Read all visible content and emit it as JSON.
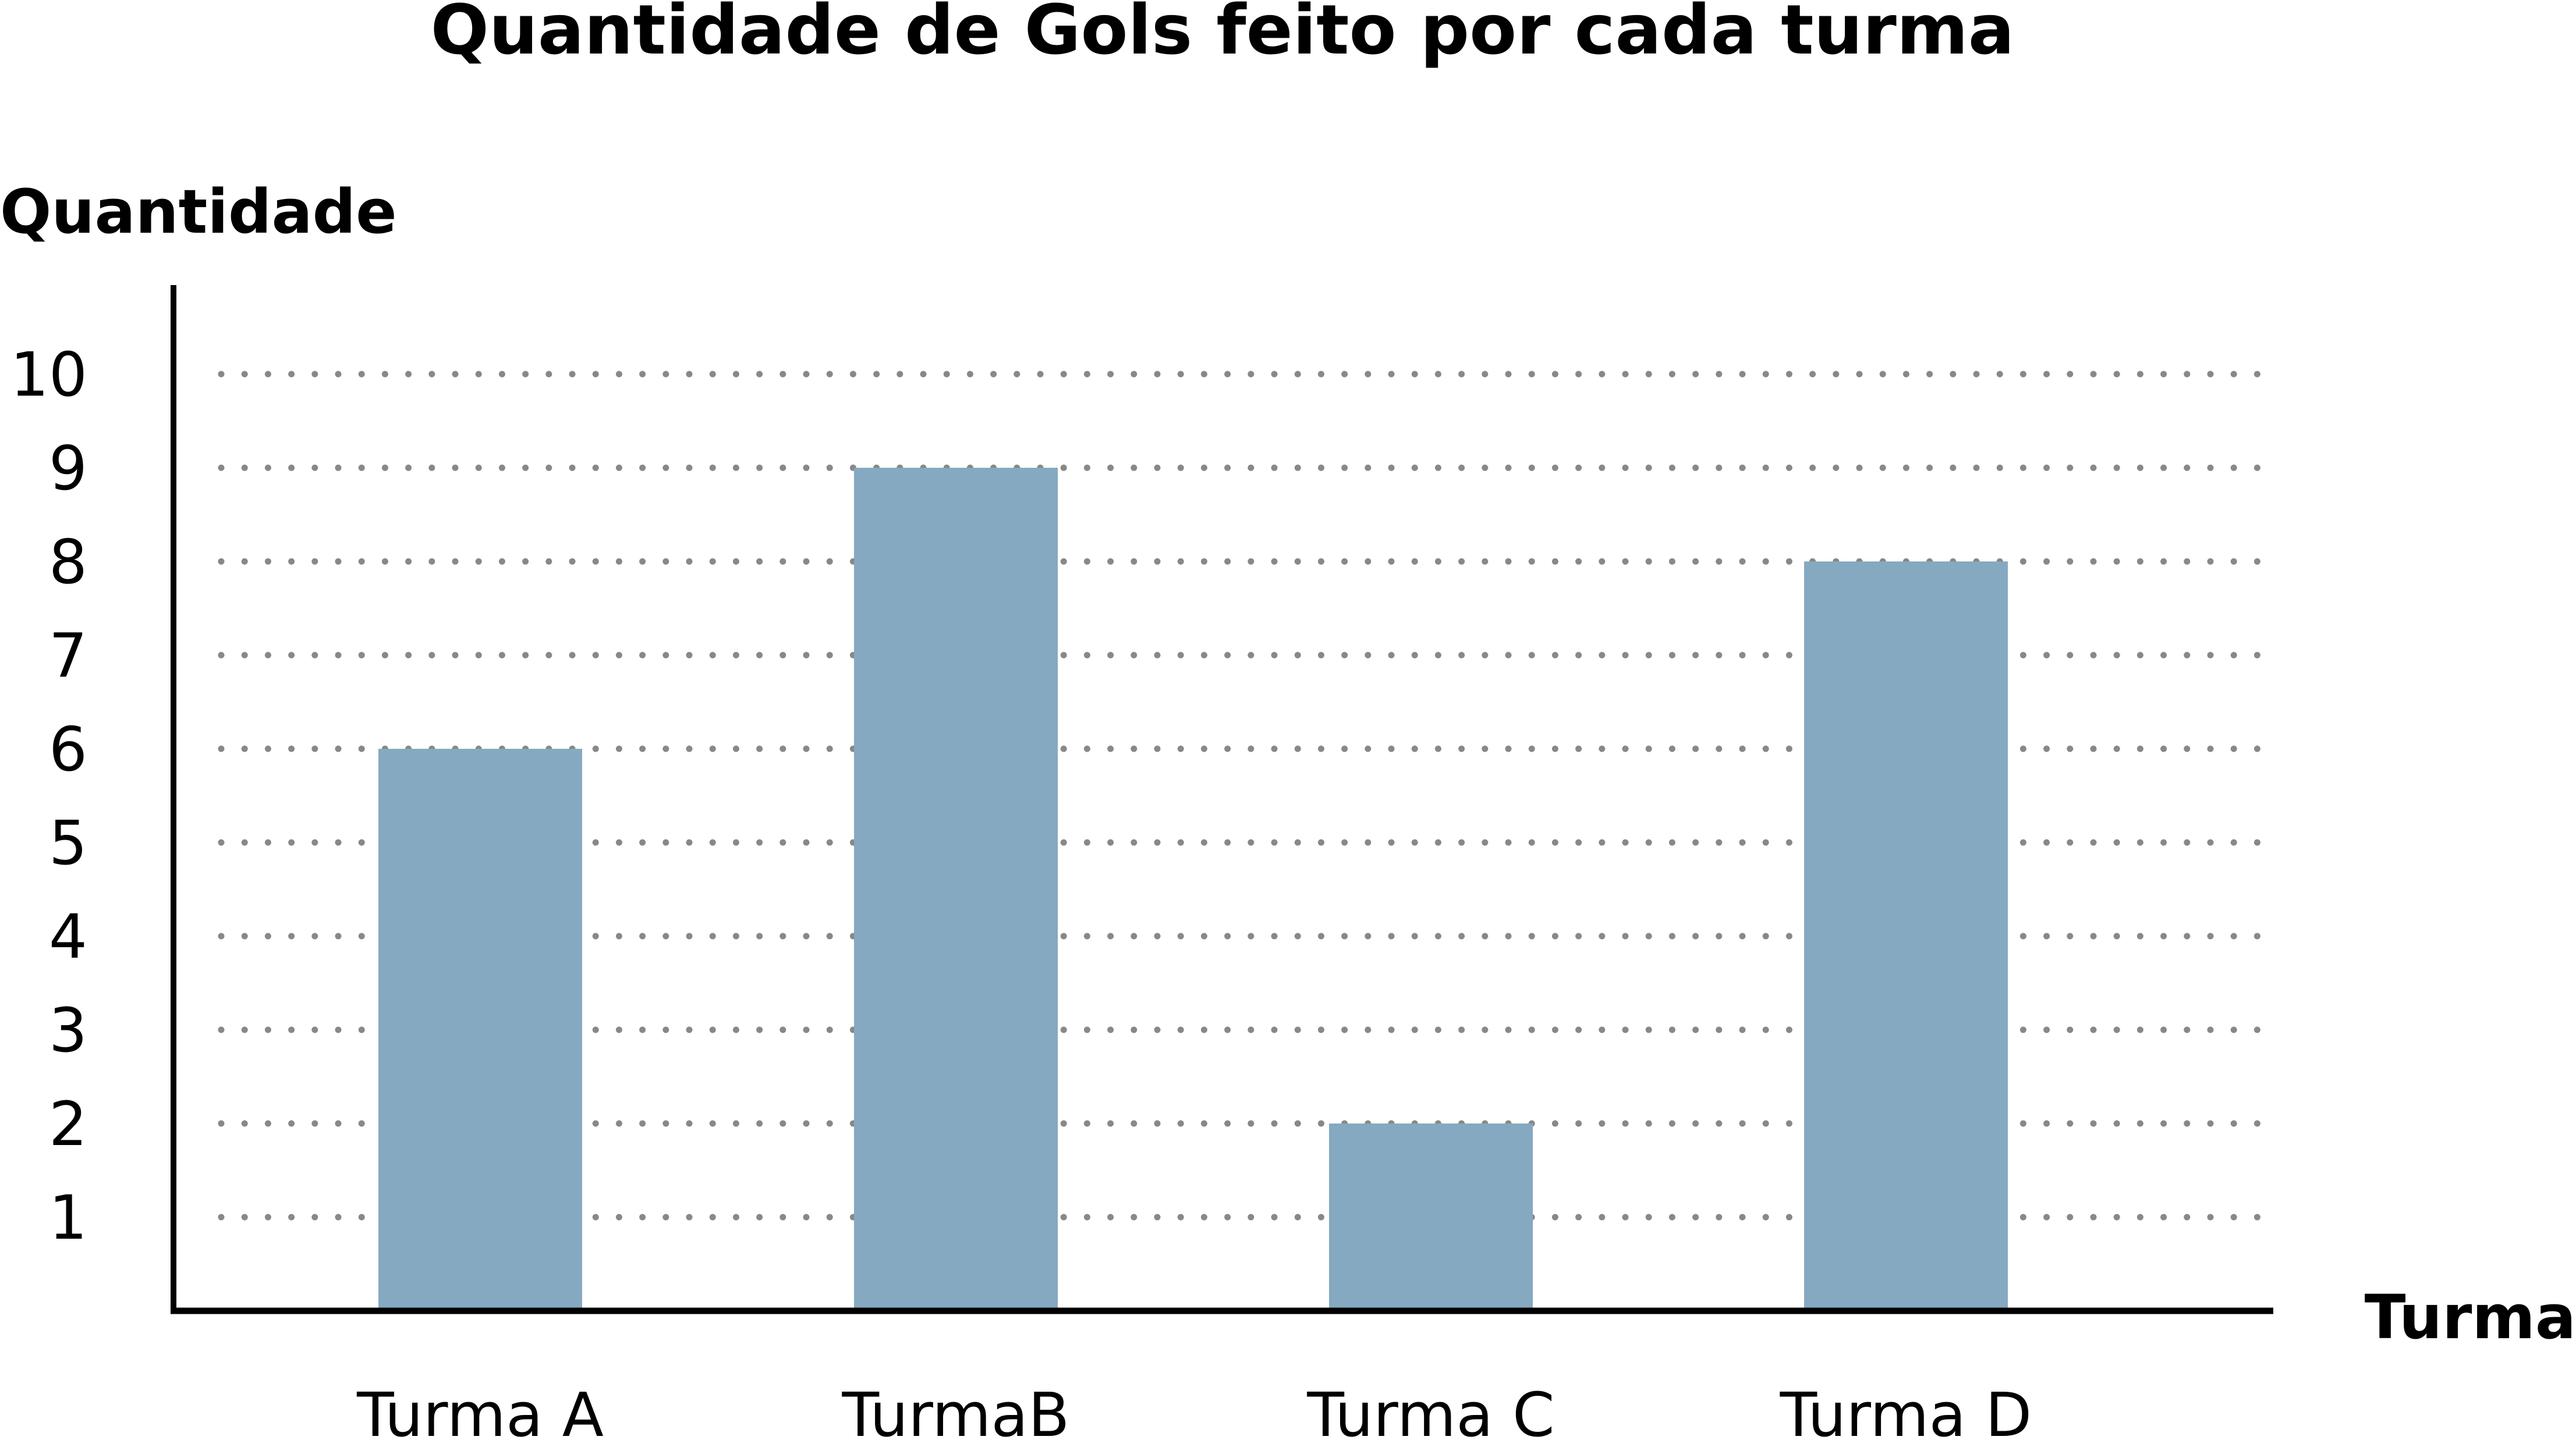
{
  "chart_data": {
    "type": "bar",
    "title": "Quantidade de Gols feito por cada turma",
    "xlabel": "Turma",
    "ylabel": "Quantidade",
    "categories": [
      "Turma A",
      "TurmaB",
      "Turma C",
      "Turma D"
    ],
    "values": [
      6,
      9,
      2,
      8
    ],
    "yticks": [
      "1",
      "2",
      "3",
      "4",
      "5",
      "6",
      "7",
      "8",
      "9",
      "10"
    ],
    "ylim": [
      0,
      10
    ],
    "grid": true,
    "grid_style": "dotted",
    "legend": "none",
    "colors": {
      "bar": "#85a9c0",
      "grid": "#888888",
      "axis": "#000000"
    }
  }
}
